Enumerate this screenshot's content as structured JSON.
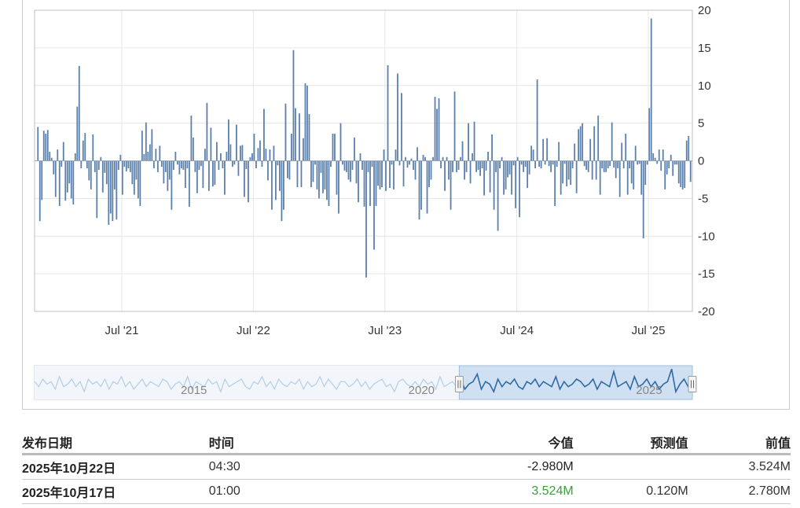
{
  "chart_data": {
    "type": "bar",
    "title": "",
    "xlabel": "",
    "ylabel": "",
    "ylim": [
      -20,
      20
    ],
    "y_ticks": [
      "20",
      "15",
      "10",
      "5",
      "0",
      "-5",
      "-10",
      "-15",
      "-20"
    ],
    "y_tick_values": [
      20,
      15,
      10,
      5,
      0,
      -5,
      -10,
      -15,
      -20
    ],
    "x_ticks": [
      "Jul '21",
      "Jul '22",
      "Jul '23",
      "Jul '24",
      "Jul '25"
    ],
    "x_tick_dates": [
      "2021-07-01",
      "2022-07-01",
      "2023-07-01",
      "2024-07-01",
      "2025-07-01"
    ],
    "x_range": [
      "2020-11-01",
      "2025-10-31"
    ],
    "grid": true,
    "bar_color": "#5b80ac",
    "series": [
      {
        "values": [
          4.5,
          -8.0,
          -5.2,
          4.0,
          3.6,
          4.1,
          1.2,
          0.4,
          -1.8,
          -4.8,
          1.5,
          -6.0,
          -0.8,
          2.5,
          -5.3,
          -4.2,
          -3.0,
          -5.0,
          -5.8,
          1.0,
          7.2,
          12.6,
          -1.0,
          2.7,
          3.7,
          -1.0,
          -2.6,
          -3.8,
          3.5,
          -1.5,
          -7.6,
          -1.2,
          0.5,
          -4.2,
          -1.6,
          -3.1,
          -8.5,
          -7.0,
          -8.0,
          -3.8,
          -7.8,
          -1.2,
          0.8,
          -4.5,
          -0.8,
          -1.4,
          -1.0,
          -1.5,
          -3.1,
          -4.5,
          -2.5,
          -5.0,
          -6.0,
          4.0,
          0.9,
          5.1,
          1.2,
          2.2,
          4.2,
          -1.0,
          1.6,
          -1.5,
          2.0,
          -0.8,
          -3.0,
          -1.5,
          -4.0,
          -2.5,
          -6.5,
          -1.2,
          1.2,
          -0.5,
          -1.8,
          -1.0,
          -1.2,
          -3.6,
          -1.0,
          -6.1,
          6.0,
          3.1,
          -1.5,
          -4.3,
          -1.2,
          -0.7,
          -3.6,
          1.6,
          7.7,
          -4.0,
          4.4,
          -3.4,
          -3.2,
          2.5,
          -1.2,
          1.0,
          -1.0,
          -4.5,
          1.2,
          5.5,
          2.2,
          -0.8,
          -0.5,
          4.8,
          -2.0,
          2.0,
          2.1,
          -4.8,
          -1.1,
          -5.5,
          0.5,
          1.0,
          3.6,
          -1.0,
          1.7,
          2.7,
          -0.8,
          6.9,
          1.6,
          -2.6,
          1.5,
          -6.5,
          2.0,
          -5.2,
          -0.6,
          -4.0,
          -8.0,
          -6.5,
          7.6,
          -2.3,
          -2.5,
          3.6,
          14.7,
          7.0,
          -3.5,
          6.3,
          -3.5,
          3.0,
          10.3,
          10.0,
          6.2,
          -3.5,
          -2.8,
          -0.5,
          -3.8,
          -5.0,
          -1.6,
          -4.3,
          -3.8,
          -5.2,
          -6.0,
          -0.8,
          3.6,
          3.6,
          -4.5,
          -7.0,
          5.0,
          -0.5,
          -1.3,
          -1.5,
          -2.5,
          -2.8,
          -1.2,
          3.1,
          -3.0,
          -5.5,
          1.0,
          -1.2,
          -6.1,
          -15.5,
          -1.5,
          -6.0,
          -0.8,
          -11.8,
          -6.0,
          -3.3,
          -3.8,
          -3.5,
          1.5,
          -4.0,
          12.7,
          -3.6,
          -0.5,
          -3.8,
          1.5,
          11.6,
          -0.6,
          9.0,
          -3.4,
          0.5,
          -0.9,
          -0.5,
          0.3,
          -1.2,
          -2.5,
          1.8,
          -7.8,
          -6.5,
          0.8,
          0.5,
          -7.0,
          -3.5,
          -2.5,
          0.5,
          8.5,
          6.9,
          8.3,
          -1.0,
          0.5,
          -4.0,
          0.5,
          -2.5,
          -6.5,
          -1.5,
          9.2,
          -1.5,
          -1.2,
          0.5,
          2.6,
          -2.5,
          -1.5,
          5.0,
          -3.0,
          1.0,
          5.2,
          -1.5,
          -1.2,
          -2.0,
          -1.0,
          -4.6,
          -1.3,
          1.2,
          -4.2,
          3.5,
          -6.5,
          -1.5,
          -9.3,
          -1.0,
          0.5,
          -4.5,
          -3.8,
          -2.2,
          -1.8,
          -4.5,
          -0.6,
          -6.3,
          0.5,
          -7.5,
          -0.5,
          -1.5,
          -0.8,
          -3.6,
          -1.8,
          2.0,
          1.5,
          -1.0,
          10.8,
          -0.8,
          -1.0,
          2.9,
          -0.5,
          3.0,
          -0.7,
          -1.5,
          -0.5,
          -6.0,
          -0.8,
          2.5,
          -4.5,
          -3.0,
          -0.4,
          -3.4,
          -2.5,
          -3.2,
          -1.0,
          2.3,
          -4.3,
          4.2,
          4.6,
          5.0,
          -0.7,
          -1.2,
          -1.5,
          2.9,
          -2.5,
          4.6,
          -2.5,
          6.0,
          -4.5,
          -1.0,
          -1.5,
          -1.5,
          -1.0,
          -0.7,
          5.1,
          -0.9,
          -2.3,
          -1.0,
          -4.8,
          2.4,
          -1.0,
          3.6,
          -4.5,
          -1.0,
          -3.0,
          -3.8,
          2.0,
          -0.5,
          -0.4,
          -4.5,
          -10.3,
          -3.2,
          -0.5,
          7.0,
          18.9,
          1.0,
          0.4,
          -0.4,
          1.5,
          -1.3,
          1.5,
          -3.8,
          -1.8,
          -1.0,
          0.8,
          -2.0,
          -0.5,
          -0.5,
          -3.0,
          -3.5,
          -3.8,
          -3.6,
          2.7,
          3.3,
          -2.8
        ]
      }
    ]
  },
  "navigator": {
    "labels": [
      "2015",
      "2020",
      "2025"
    ],
    "label_years": [
      2015,
      2020,
      2025
    ],
    "range_years": [
      2011.5,
      2025.95
    ],
    "selected_years": [
      2020.83,
      2025.95
    ],
    "values": [
      1,
      -1,
      2,
      0,
      1,
      -2,
      3,
      -1,
      0,
      2,
      -1,
      1,
      -3,
      2,
      0,
      1,
      -1,
      2,
      -2,
      1,
      0,
      3,
      -1,
      1,
      -2,
      0,
      2,
      -1,
      1,
      0,
      -1,
      2,
      1,
      -2,
      0,
      1,
      -1,
      3,
      -2,
      1,
      0,
      -1,
      2,
      0,
      1,
      -3,
      2,
      -1,
      0,
      1,
      2,
      -1,
      -2,
      1,
      0,
      3,
      -1,
      1,
      -2,
      2,
      0,
      -1,
      1,
      0,
      2,
      -2,
      1,
      -1,
      0,
      3,
      -1,
      2,
      0,
      -2,
      1,
      1,
      -1,
      0,
      2,
      -1,
      1,
      -2,
      0,
      1,
      2,
      -1,
      0,
      -3,
      1,
      2,
      0,
      -1,
      1,
      -1,
      2,
      0,
      1,
      -2,
      3,
      -1,
      0,
      1,
      -1,
      2,
      -2,
      0,
      1,
      4,
      -2,
      1,
      0,
      -3,
      2,
      -1,
      1,
      0,
      2,
      -1,
      -2,
      1,
      0,
      2,
      -1,
      1,
      0,
      -1,
      3,
      -2,
      1,
      -1,
      0,
      2,
      1,
      -1,
      0,
      2,
      -2,
      1,
      0,
      -1,
      5,
      -1,
      0,
      1,
      -2,
      3,
      -1,
      0,
      2,
      -1,
      1,
      -2,
      0,
      1,
      6,
      -3,
      0,
      2,
      -1,
      1
    ]
  },
  "table": {
    "headers": {
      "date": "发布日期",
      "time": "时间",
      "actual": "今值",
      "forecast": "预测值",
      "previous": "前值"
    },
    "rows": [
      {
        "date": "2025年10月22日",
        "time": "04:30",
        "actual": "-2.980M",
        "forecast": "",
        "previous": "3.524M",
        "actual_color": "#222222"
      },
      {
        "date": "2025年10月17日",
        "time": "01:00",
        "actual": "3.524M",
        "forecast": "0.120M",
        "previous": "2.780M",
        "actual_color": "#3aa13a"
      }
    ]
  }
}
